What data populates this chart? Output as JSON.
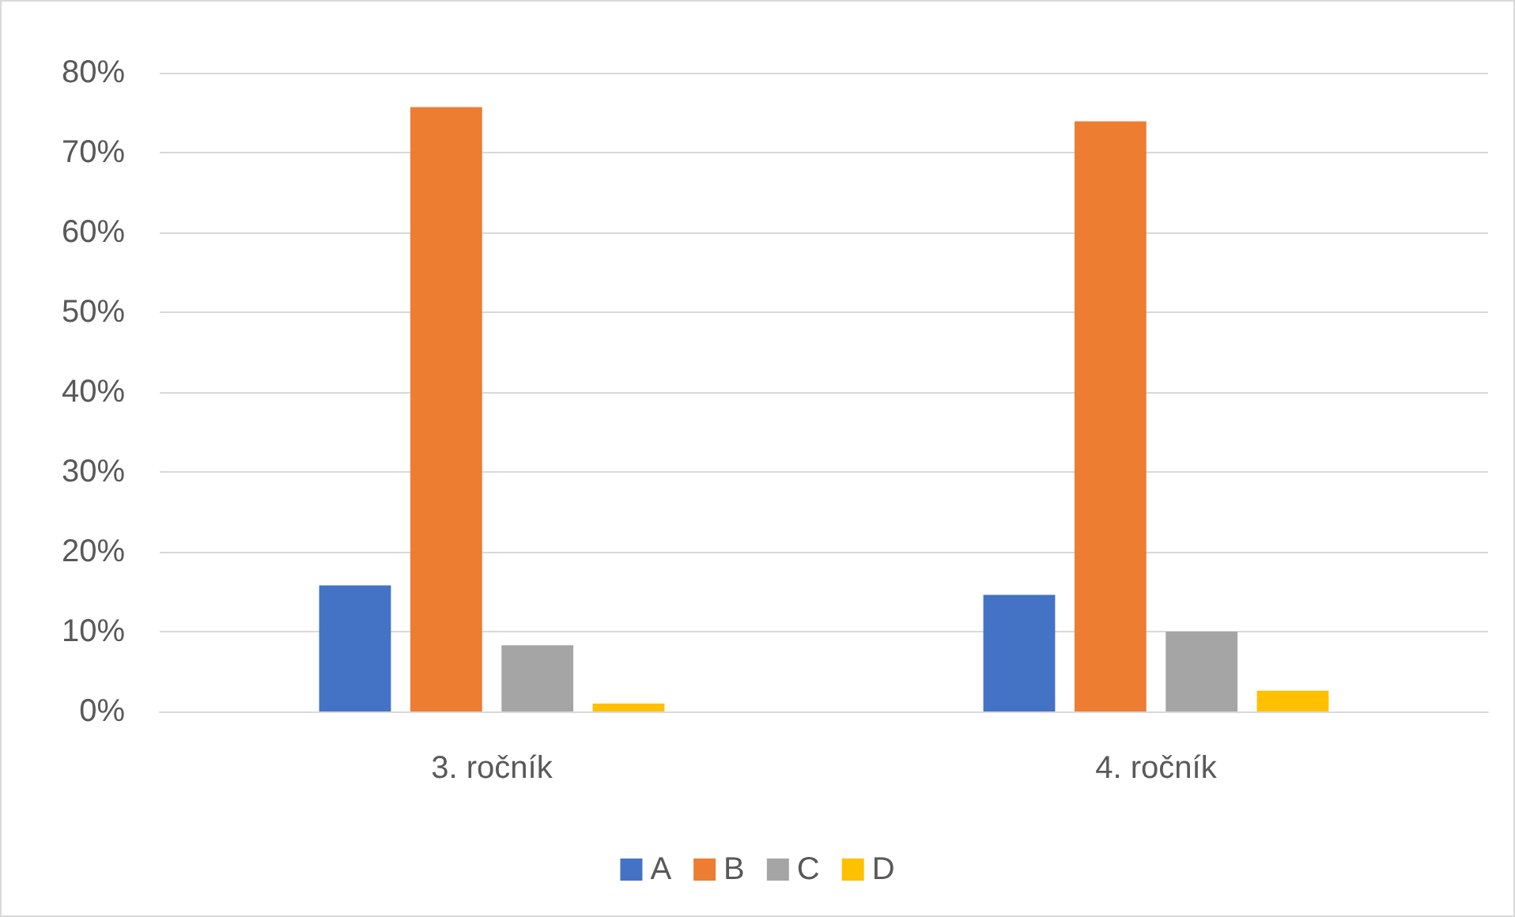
{
  "chart_data": {
    "type": "bar",
    "categories": [
      "3. ročník",
      "4. ročník"
    ],
    "series": [
      {
        "name": "A",
        "color": "#4472c4",
        "values": [
          15.8,
          14.6
        ]
      },
      {
        "name": "B",
        "color": "#ed7d31",
        "values": [
          75.7,
          73.9
        ]
      },
      {
        "name": "C",
        "color": "#a5a5a5",
        "values": [
          8.3,
          10.0
        ]
      },
      {
        "name": "D",
        "color": "#ffc000",
        "values": [
          1.0,
          2.6
        ]
      }
    ],
    "ylim": [
      0,
      80
    ],
    "yticks": [
      {
        "value": 0,
        "label": "0%"
      },
      {
        "value": 10,
        "label": "10%"
      },
      {
        "value": 20,
        "label": "20%"
      },
      {
        "value": 30,
        "label": "30%"
      },
      {
        "value": 40,
        "label": "40%"
      },
      {
        "value": 50,
        "label": "50%"
      },
      {
        "value": 60,
        "label": "60%"
      },
      {
        "value": 70,
        "label": "70%"
      },
      {
        "value": 80,
        "label": "80%"
      }
    ],
    "grid": "y",
    "legend": "bottom"
  }
}
